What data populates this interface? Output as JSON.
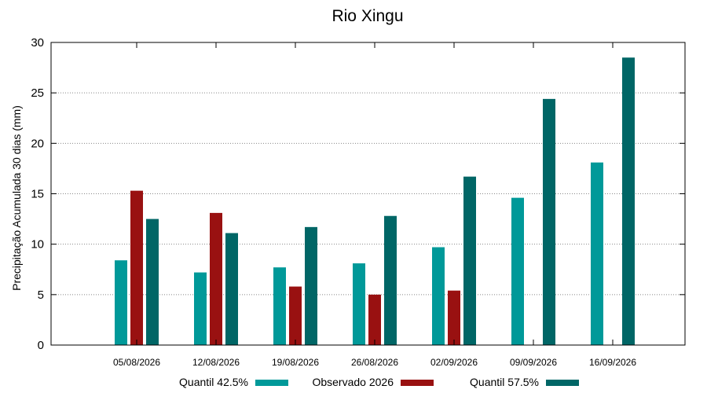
{
  "chart_data": {
    "type": "bar",
    "title": "Rio Xingu",
    "xlabel": "",
    "ylabel": "Precipitação Acumulada 30 dias (mm)",
    "ylim": [
      0,
      30
    ],
    "yticks": [
      "0",
      "5",
      "10",
      "15",
      "20",
      "25",
      "30"
    ],
    "grid": true,
    "legend_position": "bottom",
    "categories": [
      "05/08/2026",
      "12/08/2026",
      "19/08/2026",
      "26/08/2026",
      "02/09/2026",
      "09/09/2026",
      "16/09/2026"
    ],
    "series": [
      {
        "name": "Quantil 42.5%",
        "color": "#009999",
        "values": [
          8.4,
          7.2,
          7.7,
          8.1,
          9.7,
          14.6,
          18.1
        ]
      },
      {
        "name": "Observado 2026",
        "color": "#991111",
        "values": [
          15.3,
          13.1,
          5.8,
          5.0,
          5.4,
          null,
          null
        ]
      },
      {
        "name": "Quantil 57.5%",
        "color": "#006666",
        "values": [
          12.5,
          11.1,
          11.7,
          12.8,
          16.7,
          24.4,
          28.5
        ]
      }
    ]
  }
}
